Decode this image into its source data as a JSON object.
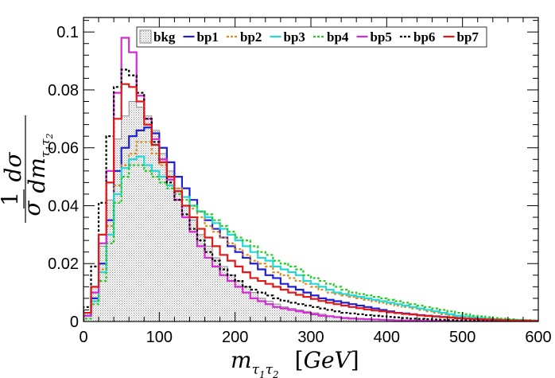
{
  "chart_data": {
    "type": "histogram",
    "xlabel": "m_{τ1τ2} [GeV]",
    "ylabel": "1/σ dσ/dm_{τ1τ2}",
    "xlim": [
      0,
      600
    ],
    "ylim": [
      0,
      0.105
    ],
    "x_ticks": [
      0,
      100,
      200,
      300,
      400,
      500,
      600
    ],
    "x_tick_labels": [
      "0",
      "100",
      "200",
      "300",
      "400",
      "500",
      "600"
    ],
    "y_ticks": [
      0,
      0.02,
      0.04,
      0.06,
      0.08,
      0.1
    ],
    "y_tick_labels": [
      "0",
      "0.02",
      "0.04",
      "0.06",
      "0.08",
      "0.1"
    ],
    "bin_width": 10,
    "legend": [
      "bkg",
      "bp1",
      "bp2",
      "bp3",
      "bp4",
      "bp5",
      "bp6",
      "bp7"
    ],
    "series": [
      {
        "name": "bkg",
        "color": "#888888",
        "style": "filled",
        "values": [
          0.003,
          0.012,
          0.026,
          0.042,
          0.063,
          0.071,
          0.076,
          0.074,
          0.071,
          0.066,
          0.058,
          0.052,
          0.046,
          0.04,
          0.035,
          0.03,
          0.026,
          0.022,
          0.019,
          0.016,
          0.014,
          0.012,
          0.01,
          0.008,
          0.007,
          0.006,
          0.005,
          0.0045,
          0.004,
          0.0035,
          0.003,
          0.0025,
          0.002,
          0.0017,
          0.0014,
          0.0012,
          0.001,
          0.0008,
          0.0007,
          0.0006,
          0.0005,
          0.0004,
          0.0004,
          0.0003,
          0.0003,
          0.0002,
          0.0002,
          0.0002,
          0.0001,
          0.0001,
          0.0001,
          0.0001,
          0.0001,
          0.0001,
          0.0001,
          0.0001,
          0.0001,
          0.0001,
          0.0001,
          0.0001
        ]
      },
      {
        "name": "bp1",
        "color": "#1f1fd6",
        "style": "solid",
        "values": [
          0.002,
          0.008,
          0.02,
          0.035,
          0.052,
          0.06,
          0.064,
          0.066,
          0.067,
          0.065,
          0.06,
          0.055,
          0.05,
          0.046,
          0.042,
          0.038,
          0.035,
          0.032,
          0.029,
          0.026,
          0.024,
          0.022,
          0.02,
          0.018,
          0.016,
          0.015,
          0.013,
          0.012,
          0.011,
          0.01,
          0.009,
          0.008,
          0.0075,
          0.007,
          0.0065,
          0.006,
          0.0055,
          0.005,
          0.0045,
          0.004,
          0.0035,
          0.003,
          0.0028,
          0.0025,
          0.0022,
          0.002,
          0.0018,
          0.0016,
          0.0014,
          0.0012,
          0.001,
          0.0009,
          0.0008,
          0.0007,
          0.0006,
          0.0005,
          0.0004,
          0.0003,
          0.0003,
          0.0002
        ]
      },
      {
        "name": "bp2",
        "color": "#e08a1e",
        "style": "dashed",
        "values": [
          0.002,
          0.007,
          0.018,
          0.033,
          0.047,
          0.054,
          0.058,
          0.062,
          0.062,
          0.058,
          0.054,
          0.05,
          0.046,
          0.043,
          0.039,
          0.036,
          0.033,
          0.031,
          0.029,
          0.027,
          0.025,
          0.023,
          0.021,
          0.02,
          0.019,
          0.017,
          0.016,
          0.015,
          0.014,
          0.013,
          0.012,
          0.011,
          0.01,
          0.0095,
          0.009,
          0.0085,
          0.008,
          0.0075,
          0.007,
          0.0065,
          0.006,
          0.0055,
          0.005,
          0.0045,
          0.004,
          0.0035,
          0.003,
          0.0025,
          0.002,
          0.0018,
          0.0015,
          0.0012,
          0.001,
          0.0009,
          0.0008,
          0.0006,
          0.0005,
          0.0004,
          0.0003,
          0.0002
        ]
      },
      {
        "name": "bp3",
        "color": "#22d8d8",
        "style": "solid",
        "values": [
          0.002,
          0.007,
          0.017,
          0.03,
          0.044,
          0.053,
          0.056,
          0.057,
          0.054,
          0.052,
          0.05,
          0.047,
          0.045,
          0.043,
          0.04,
          0.038,
          0.036,
          0.034,
          0.032,
          0.03,
          0.028,
          0.026,
          0.024,
          0.022,
          0.021,
          0.019,
          0.018,
          0.017,
          0.016,
          0.014,
          0.013,
          0.012,
          0.011,
          0.01,
          0.0095,
          0.009,
          0.0085,
          0.008,
          0.0075,
          0.007,
          0.0065,
          0.006,
          0.0055,
          0.005,
          0.0045,
          0.004,
          0.0035,
          0.003,
          0.0025,
          0.002,
          0.0018,
          0.0015,
          0.0012,
          0.001,
          0.0008,
          0.0007,
          0.0006,
          0.0005,
          0.0004,
          0.0003
        ]
      },
      {
        "name": "bp4",
        "color": "#22cc22",
        "style": "dashed",
        "values": [
          0.001,
          0.006,
          0.014,
          0.027,
          0.041,
          0.05,
          0.054,
          0.054,
          0.052,
          0.05,
          0.048,
          0.046,
          0.044,
          0.042,
          0.04,
          0.038,
          0.037,
          0.035,
          0.033,
          0.031,
          0.029,
          0.028,
          0.026,
          0.024,
          0.023,
          0.021,
          0.02,
          0.019,
          0.018,
          0.016,
          0.015,
          0.014,
          0.013,
          0.012,
          0.011,
          0.01,
          0.0095,
          0.009,
          0.0085,
          0.008,
          0.0075,
          0.007,
          0.0065,
          0.006,
          0.0055,
          0.005,
          0.0045,
          0.004,
          0.0035,
          0.003,
          0.0025,
          0.002,
          0.0018,
          0.0015,
          0.0012,
          0.001,
          0.0008,
          0.0006,
          0.0005,
          0.0004
        ]
      },
      {
        "name": "bp5",
        "color": "#d62ad6",
        "style": "solid",
        "values": [
          0.002,
          0.01,
          0.027,
          0.052,
          0.079,
          0.098,
          0.093,
          0.078,
          0.07,
          0.063,
          0.056,
          0.049,
          0.042,
          0.036,
          0.031,
          0.026,
          0.022,
          0.019,
          0.016,
          0.014,
          0.012,
          0.01,
          0.008,
          0.007,
          0.006,
          0.005,
          0.0045,
          0.004,
          0.0035,
          0.003,
          0.0025,
          0.002,
          0.0018,
          0.0015,
          0.0012,
          0.001,
          0.0009,
          0.0008,
          0.0007,
          0.0006,
          0.0005,
          0.0004,
          0.0004,
          0.0003,
          0.0003,
          0.0002,
          0.0002,
          0.0002,
          0.0001,
          0.0001,
          0.0001,
          0.0001,
          0.0001,
          0.0001,
          0.0001,
          0.0001,
          0.0001,
          0.0001,
          0.0001,
          0.0001
        ]
      },
      {
        "name": "bp6",
        "color": "#000000",
        "style": "dashed",
        "values": [
          0.005,
          0.019,
          0.041,
          0.064,
          0.081,
          0.087,
          0.085,
          0.079,
          0.07,
          0.062,
          0.055,
          0.048,
          0.042,
          0.037,
          0.032,
          0.028,
          0.024,
          0.021,
          0.018,
          0.016,
          0.014,
          0.012,
          0.011,
          0.01,
          0.009,
          0.008,
          0.0072,
          0.0065,
          0.006,
          0.0055,
          0.005,
          0.0045,
          0.004,
          0.0035,
          0.003,
          0.0028,
          0.0025,
          0.0022,
          0.002,
          0.0018,
          0.0016,
          0.0014,
          0.0012,
          0.001,
          0.0009,
          0.0008,
          0.0007,
          0.0006,
          0.0005,
          0.0004,
          0.0004,
          0.0003,
          0.0003,
          0.0002,
          0.0002,
          0.0002,
          0.0001,
          0.0001,
          0.0001,
          0.0001
        ]
      },
      {
        "name": "bp7",
        "color": "#e01818",
        "style": "solid",
        "values": [
          0.003,
          0.012,
          0.03,
          0.048,
          0.07,
          0.082,
          0.081,
          0.076,
          0.068,
          0.061,
          0.055,
          0.05,
          0.045,
          0.04,
          0.036,
          0.032,
          0.029,
          0.026,
          0.023,
          0.021,
          0.019,
          0.017,
          0.015,
          0.014,
          0.013,
          0.012,
          0.011,
          0.01,
          0.0092,
          0.0085,
          0.0078,
          0.0071,
          0.0065,
          0.006,
          0.0055,
          0.005,
          0.0046,
          0.0042,
          0.0038,
          0.0035,
          0.0032,
          0.0029,
          0.0026,
          0.0024,
          0.0021,
          0.0019,
          0.0017,
          0.0015,
          0.0013,
          0.0011,
          0.001,
          0.0009,
          0.0008,
          0.0007,
          0.0006,
          0.0005,
          0.0004,
          0.0003,
          0.0003,
          0.0002
        ]
      }
    ]
  }
}
